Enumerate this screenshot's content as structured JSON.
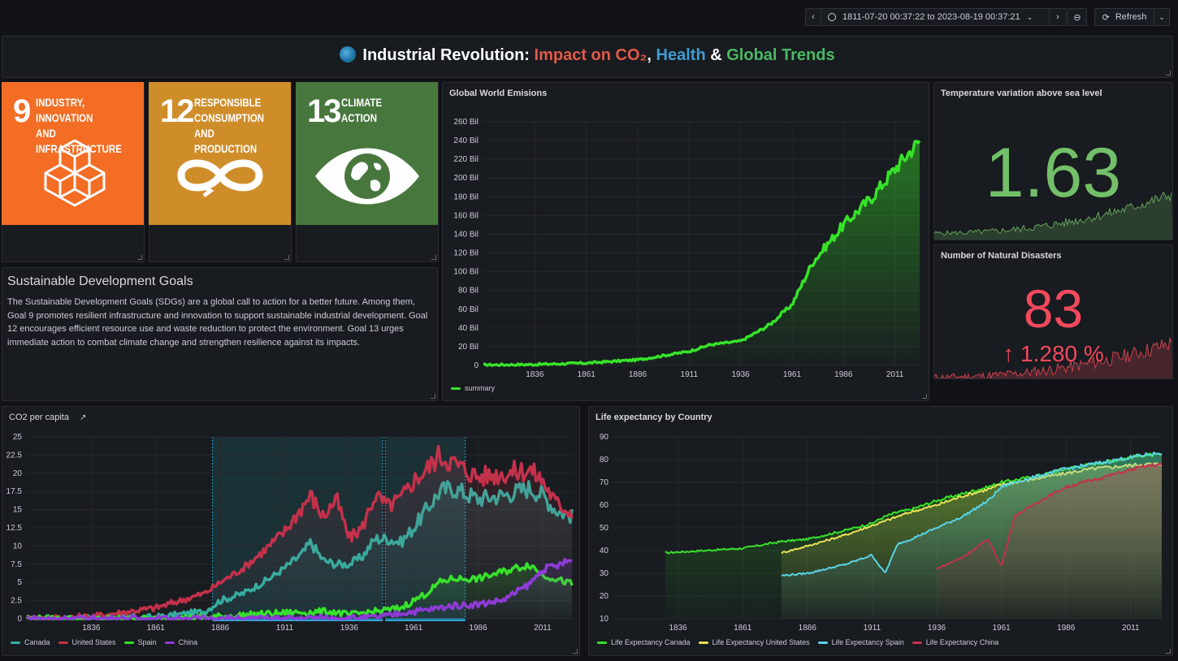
{
  "toolbar": {
    "time_range": "1811-07-20 00:37:22 to 2023-08-19 00:37:21",
    "refresh_label": "Refresh"
  },
  "header": {
    "icon": "globe-icon",
    "title_part1": "Industrial Revolution: ",
    "title_part2": "Impact on CO₂",
    "title_sep1": ", ",
    "title_part3": "Health",
    "title_sep2": " & ",
    "title_part4": "Global Trends",
    "colors": {
      "co2": "#e05a4a",
      "health": "#3f9bd1",
      "trends": "#4ab866"
    }
  },
  "sdg_tiles": [
    {
      "number": "9",
      "text": "INDUSTRY, INNOVATION\nAND INFRASTRUCTURE",
      "color": "#f36d25",
      "icon": "cubes-icon"
    },
    {
      "number": "12",
      "text": "RESPONSIBLE\nCONSUMPTION\nAND PRODUCTION",
      "color": "#cf8d2a",
      "icon": "infinity-icon"
    },
    {
      "number": "13",
      "text": "CLIMATE\nACTION",
      "color": "#48773e",
      "icon": "earth-eye-icon"
    }
  ],
  "text_panel": {
    "title": "Sustainable Development Goals",
    "body": "The Sustainable Development Goals (SDGs) are a global call to action for a better future. Among them, Goal 9 promotes resilient infrastructure and innovation to support sustainable industrial development. Goal 12 encourages efficient resource use and waste reduction to protect the environment. Goal 13 urges immediate action to combat climate change and strengthen resilience against its impacts."
  },
  "stat_temperature": {
    "title": "Temperature variation above sea level",
    "value": "1.63",
    "color": "#73bf69"
  },
  "stat_disasters": {
    "title": "Number of Natural Disasters",
    "value": "83",
    "change": "1.280 %",
    "color": "#f2495c"
  },
  "chart_data": [
    {
      "type": "area",
      "title": "Global World Emisions",
      "x": [
        1811,
        1836,
        1861,
        1886,
        1911,
        1921,
        1936,
        1946,
        1951,
        1961,
        1971,
        1986,
        2000,
        2011,
        2023
      ],
      "series": [
        {
          "name": "summary",
          "color": "#37e22a",
          "values": [
            0.5,
            1,
            2.5,
            6,
            15,
            22,
            26,
            38,
            45,
            65,
            110,
            150,
            180,
            210,
            240
          ]
        }
      ],
      "xticks": [
        "1836",
        "1861",
        "1886",
        "1911",
        "1936",
        "1961",
        "1986",
        "2011"
      ],
      "yticks": [
        "0",
        "20 Bil",
        "40 Bil",
        "60 Bil",
        "80 Bil",
        "100 Bil",
        "120 Bil",
        "140 Bil",
        "160 Bil",
        "180 Bil",
        "200 Bil",
        "220 Bil",
        "240 Bil",
        "260 Bil"
      ],
      "ylim": [
        0,
        260
      ],
      "xlim": [
        1811,
        2023
      ],
      "legend": "bottom-left"
    },
    {
      "type": "line",
      "title": "CO2 per capita",
      "x": [
        1811,
        1836,
        1861,
        1880,
        1886,
        1895,
        1905,
        1911,
        1918,
        1921,
        1926,
        1931,
        1936,
        1941,
        1946,
        1951,
        1956,
        1961,
        1966,
        1971,
        1976,
        1986,
        1996,
        2006,
        2011,
        2016,
        2023
      ],
      "series": [
        {
          "name": "Canada",
          "color": "#2fb3a3",
          "values": [
            0,
            0,
            0.2,
            1,
            2.5,
            3.5,
            5.5,
            7,
            9,
            10.5,
            8,
            7.5,
            7.5,
            8.5,
            11,
            11,
            10.5,
            12.5,
            15,
            17.5,
            18,
            16.5,
            17,
            18,
            17,
            15,
            14
          ]
        },
        {
          "name": "United States",
          "color": "#c4314b",
          "values": [
            0,
            0.3,
            1.5,
            3.5,
            5,
            7,
            10,
            12,
            15.5,
            17,
            14,
            16.5,
            11,
            12.5,
            17,
            15.5,
            16.5,
            19,
            20.5,
            22.5,
            21.5,
            19.5,
            20,
            20.5,
            19,
            16,
            14.5
          ]
        },
        {
          "name": "Spain",
          "color": "#37e22a",
          "values": [
            0,
            0,
            0,
            0.2,
            0.3,
            0.5,
            0.7,
            0.8,
            0.9,
            0.9,
            1,
            0.9,
            0.5,
            0.8,
            1,
            1.2,
            1.5,
            2.5,
            3.5,
            5,
            5.5,
            5.5,
            6.5,
            7.5,
            6,
            5.5,
            4.7
          ]
        },
        {
          "name": "China",
          "color": "#8f3bd8",
          "values": [
            0,
            0,
            0,
            0,
            0,
            0,
            0,
            0,
            0.1,
            0.1,
            0.1,
            0.1,
            0.1,
            0.1,
            0.2,
            0.4,
            0.8,
            1,
            1.2,
            1.5,
            1.8,
            2,
            2.6,
            4.8,
            6.8,
            7.2,
            8.2
          ]
        }
      ],
      "xticks": [
        "1836",
        "1861",
        "1886",
        "1911",
        "1936",
        "1961",
        "1986",
        "2011"
      ],
      "yticks": [
        "0",
        "2.5",
        "5",
        "7.5",
        "10",
        "12.5",
        "15",
        "17.5",
        "20",
        "22.5",
        "25"
      ],
      "ylim": [
        0,
        25
      ],
      "xlim": [
        1811,
        2023
      ],
      "legend": "bottom-left"
    },
    {
      "type": "line",
      "title": "Life expectancy by Country",
      "x": [
        1831,
        1861,
        1876,
        1886,
        1901,
        1911,
        1916,
        1921,
        1926,
        1936,
        1946,
        1956,
        1961,
        1966,
        1976,
        1986,
        1996,
        2006,
        2016,
        2023
      ],
      "series": [
        {
          "name": "Life Expectancy Canada",
          "color": "#37e22a",
          "values": [
            39,
            41,
            44,
            45,
            49,
            52,
            55,
            57,
            58,
            62,
            65,
            68,
            70,
            71,
            73,
            76,
            78,
            80,
            82,
            82
          ]
        },
        {
          "name": "Life Expectancy United States",
          "color": "#e8e357",
          "values": [
            null,
            null,
            39,
            42,
            47,
            51,
            53,
            55,
            57,
            60,
            64,
            67,
            69,
            70,
            72,
            74,
            76,
            77,
            78,
            78
          ]
        },
        {
          "name": "Life Expectancy Spain",
          "color": "#5ad3e6",
          "values": [
            null,
            null,
            29,
            30,
            34,
            38,
            30,
            43,
            45,
            50,
            55,
            62,
            68,
            70,
            73,
            76,
            78,
            80,
            82,
            83
          ]
        },
        {
          "name": "Life Expectancy China",
          "color": "#c4314b",
          "values": [
            null,
            null,
            null,
            null,
            null,
            null,
            null,
            null,
            null,
            32,
            37,
            45,
            33,
            55,
            62,
            68,
            71,
            74,
            77,
            78
          ]
        }
      ],
      "xticks": [
        "1836",
        "1861",
        "1886",
        "1911",
        "1936",
        "1961",
        "1986",
        "2011"
      ],
      "yticks": [
        "10",
        "20",
        "30",
        "40",
        "50",
        "60",
        "70",
        "80",
        "90"
      ],
      "ylim": [
        10,
        90
      ],
      "xlim": [
        1811,
        2023
      ],
      "legend": "bottom-left"
    }
  ]
}
